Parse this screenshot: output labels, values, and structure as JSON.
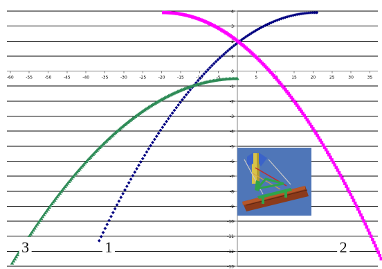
{
  "chart_data": {
    "type": "scatter",
    "xlim": [
      -60,
      38
    ],
    "ylim": [
      -13,
      4
    ],
    "x_ticks": [
      -60,
      -55,
      -50,
      -45,
      -40,
      -35,
      -30,
      -25,
      -20,
      -15,
      -10,
      -5,
      0,
      5,
      10,
      15,
      20,
      25,
      30,
      35
    ],
    "y_ticks": [
      -13,
      -12,
      -11,
      -10,
      -9,
      -8,
      -7,
      -6,
      -5,
      -4,
      -3,
      -2,
      -1,
      0,
      1,
      2,
      3,
      4
    ],
    "grid": "horizontal",
    "series": [
      {
        "label": "1",
        "color": "#000080",
        "marker": "diamond",
        "x_range": [
          -36.5,
          21
        ],
        "vertex": [
          21,
          3.9
        ],
        "passes_through": [
          -36.5,
          -11.3
        ],
        "points": 110
      },
      {
        "label": "2",
        "color": "#ff00ff",
        "marker": "square",
        "x_range": [
          -19.5,
          38
        ],
        "vertex": [
          -19.5,
          3.9
        ],
        "passes_through": [
          38,
          -12.5
        ],
        "points": 150
      },
      {
        "label": "3",
        "color": "#2e8b57",
        "marker": "triangle",
        "x_range": [
          -59.5,
          0
        ],
        "vertex": [
          0,
          -0.5
        ],
        "passes_through": [
          -59.5,
          -12.8
        ],
        "points": 170
      }
    ],
    "curve_labels": [
      {
        "text": "3",
        "x": -56,
        "y": -11.7
      },
      {
        "text": "1",
        "x": -34,
        "y": -11.7
      },
      {
        "text": "2",
        "x": 28,
        "y": -11.7
      }
    ]
  },
  "inset": {
    "icon": "mechanism-illustration",
    "background": "#4f76b8"
  }
}
